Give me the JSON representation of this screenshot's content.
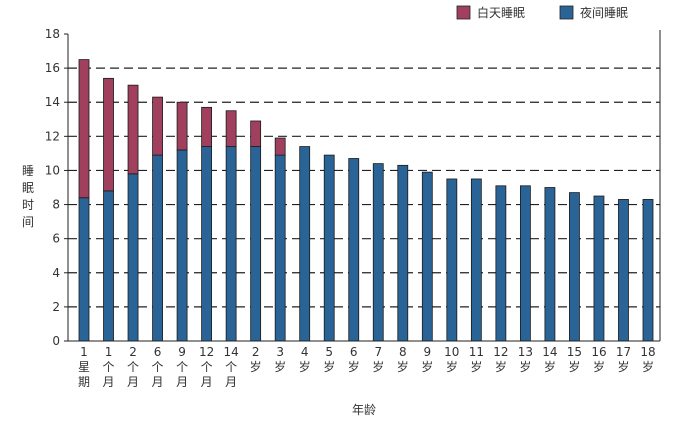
{
  "chart_data": {
    "type": "bar",
    "stacked": true,
    "title": "",
    "xlabel": "年龄",
    "ylabel": "睡眠时间",
    "ylim": [
      0,
      18
    ],
    "yticks": [
      0,
      2,
      4,
      6,
      8,
      10,
      12,
      14,
      16,
      18
    ],
    "grid": "horizontal dashed",
    "legend_position": "top-right",
    "categories": [
      [
        "1",
        "星",
        "期"
      ],
      [
        "1",
        "个",
        "月"
      ],
      [
        "2",
        "个",
        "月"
      ],
      [
        "6",
        "个",
        "月"
      ],
      [
        "9",
        "个",
        "月"
      ],
      [
        "12",
        "个",
        "月"
      ],
      [
        "14",
        "个",
        "月"
      ],
      [
        "2",
        "岁"
      ],
      [
        "3",
        "岁"
      ],
      [
        "4",
        "岁"
      ],
      [
        "5",
        "岁"
      ],
      [
        "6",
        "岁"
      ],
      [
        "7",
        "岁"
      ],
      [
        "8",
        "岁"
      ],
      [
        "9",
        "岁"
      ],
      [
        "10",
        "岁"
      ],
      [
        "11",
        "岁"
      ],
      [
        "12",
        "岁"
      ],
      [
        "13",
        "岁"
      ],
      [
        "14",
        "岁"
      ],
      [
        "15",
        "岁"
      ],
      [
        "16",
        "岁"
      ],
      [
        "17",
        "岁"
      ],
      [
        "18",
        "岁"
      ]
    ],
    "series": [
      {
        "name": "夜间睡眠",
        "color": "#2a6496",
        "values": [
          8.4,
          8.8,
          9.8,
          10.9,
          11.2,
          11.4,
          11.4,
          11.4,
          10.9,
          11.4,
          10.9,
          10.7,
          10.4,
          10.3,
          9.9,
          9.5,
          9.5,
          9.1,
          9.1,
          9.0,
          8.7,
          8.5,
          8.3,
          8.3
        ]
      },
      {
        "name": "白天睡眠",
        "color": "#a0405e",
        "values": [
          8.1,
          6.6,
          5.2,
          3.4,
          2.8,
          2.3,
          2.1,
          1.5,
          1.0,
          0,
          0,
          0,
          0,
          0,
          0,
          0,
          0,
          0,
          0,
          0,
          0,
          0,
          0,
          0
        ]
      }
    ]
  }
}
